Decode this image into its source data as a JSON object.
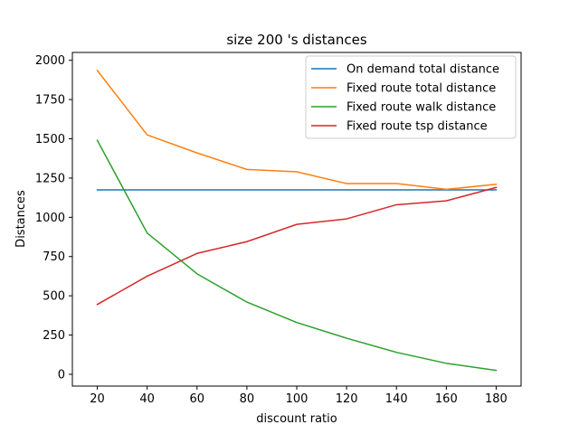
{
  "chart_data": {
    "type": "line",
    "title": "size 200 's distances",
    "xlabel": "discount ratio",
    "ylabel": "Distances",
    "x": [
      20,
      40,
      60,
      80,
      100,
      120,
      140,
      160,
      180
    ],
    "xlim": [
      10,
      190
    ],
    "ylim": [
      -75,
      2050
    ],
    "xticks": [
      20,
      40,
      60,
      80,
      100,
      120,
      140,
      160,
      180
    ],
    "yticks": [
      0,
      250,
      500,
      750,
      1000,
      1250,
      1500,
      1750,
      2000
    ],
    "grid": false,
    "legend_position": "top-right",
    "series": [
      {
        "name": "On demand total distance",
        "color": "#1f77b4",
        "values": [
          1175,
          1175,
          1175,
          1175,
          1175,
          1175,
          1175,
          1175,
          1175
        ]
      },
      {
        "name": "Fixed route total distance",
        "color": "#ff7f0e",
        "values": [
          1935,
          1525,
          1410,
          1305,
          1290,
          1215,
          1215,
          1178,
          1210
        ]
      },
      {
        "name": "Fixed route walk distance",
        "color": "#2ca02c",
        "values": [
          1490,
          900,
          640,
          460,
          330,
          230,
          140,
          70,
          25
        ]
      },
      {
        "name": "Fixed route tsp distance",
        "color": "#d62728",
        "values": [
          445,
          625,
          770,
          845,
          955,
          990,
          1080,
          1105,
          1190
        ]
      }
    ]
  }
}
